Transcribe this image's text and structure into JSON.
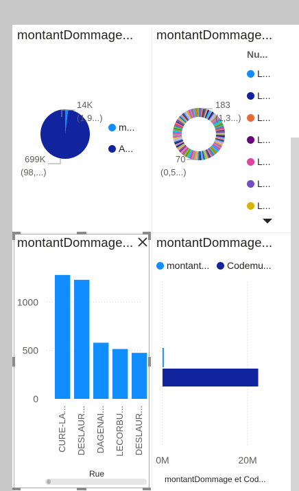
{
  "visuals": {
    "pie": {
      "title": "montantDommage...",
      "label_small": "14K",
      "label_small_sub": "(1,9...)",
      "label_large": "699K",
      "label_large_sub": "(98,...)",
      "legend": [
        {
          "label": "m...",
          "color": "#118DFF"
        },
        {
          "label": "A...",
          "color": "#12239E"
        }
      ]
    },
    "donut": {
      "title": "montantDommage...",
      "legend_title": "Nu...",
      "label_top": "183",
      "label_top_sub": "(1,3...)",
      "label_bottom": "70",
      "label_bottom_sub": "(0,5...)",
      "legend": [
        {
          "label": "L...",
          "color": "#118DFF"
        },
        {
          "label": "L...",
          "color": "#12239E"
        },
        {
          "label": "L...",
          "color": "#E66C37"
        },
        {
          "label": "L...",
          "color": "#6B007B"
        },
        {
          "label": "L...",
          "color": "#E044A7"
        },
        {
          "label": "L...",
          "color": "#744EC2"
        },
        {
          "label": "L...",
          "color": "#D9B300"
        }
      ],
      "more_icon": "triangle-down-icon"
    },
    "bar": {
      "title": "montantDommage...",
      "close_icon": "close-icon",
      "xlabel": "Rue"
    },
    "hbar": {
      "title": "montantDommage...",
      "xlabel": "montantDommage et Cod...",
      "legend": [
        {
          "label": "montant...",
          "color": "#118DFF"
        },
        {
          "label": "Codemu...",
          "color": "#12239E"
        }
      ]
    }
  },
  "chart_data": [
    {
      "type": "pie",
      "title": "montantDommage...",
      "slices": [
        {
          "label": "m...",
          "value": 14000,
          "display": "14K",
          "percent_label": "(1,9...)",
          "color": "#118DFF"
        },
        {
          "label": "A...",
          "value": 699000,
          "display": "699K",
          "percent_label": "(98,...)",
          "color": "#12239E"
        }
      ],
      "legend_position": "right"
    },
    {
      "type": "pie",
      "subtype": "donut",
      "title": "montantDommage...",
      "legend_title": "Nu...",
      "annotations": [
        {
          "value": 183,
          "percent_label": "(1,3...)"
        },
        {
          "value": 70,
          "percent_label": "(0,5...)"
        }
      ],
      "legend_position": "right"
    },
    {
      "type": "bar",
      "title": "montantDommage...",
      "categories": [
        "CURE-LA...",
        "DESLAUR...",
        "DAGENAI...",
        "LECORBU...",
        "DESLAUR..."
      ],
      "values": [
        1280,
        1230,
        580,
        515,
        475
      ],
      "xlabel": "Rue",
      "ylabel": "",
      "ylim": [
        0,
        1350
      ],
      "yticks": [
        0,
        500,
        1000
      ],
      "grid": true,
      "color": "#118DFF"
    },
    {
      "type": "bar",
      "orientation": "horizontal",
      "title": "montantDommage...",
      "series": [
        {
          "name": "montant...",
          "values": [
            0.3
          ],
          "color": "#118DFF"
        },
        {
          "name": "Codemu...",
          "values": [
            22.5
          ],
          "color": "#12239E"
        }
      ],
      "xlabel": "montantDommage et Cod...",
      "xlim": [
        0,
        25
      ],
      "xticks": [
        0,
        20
      ],
      "xtick_labels": [
        "0M",
        "20M"
      ],
      "grid": true,
      "legend_position": "top"
    }
  ]
}
